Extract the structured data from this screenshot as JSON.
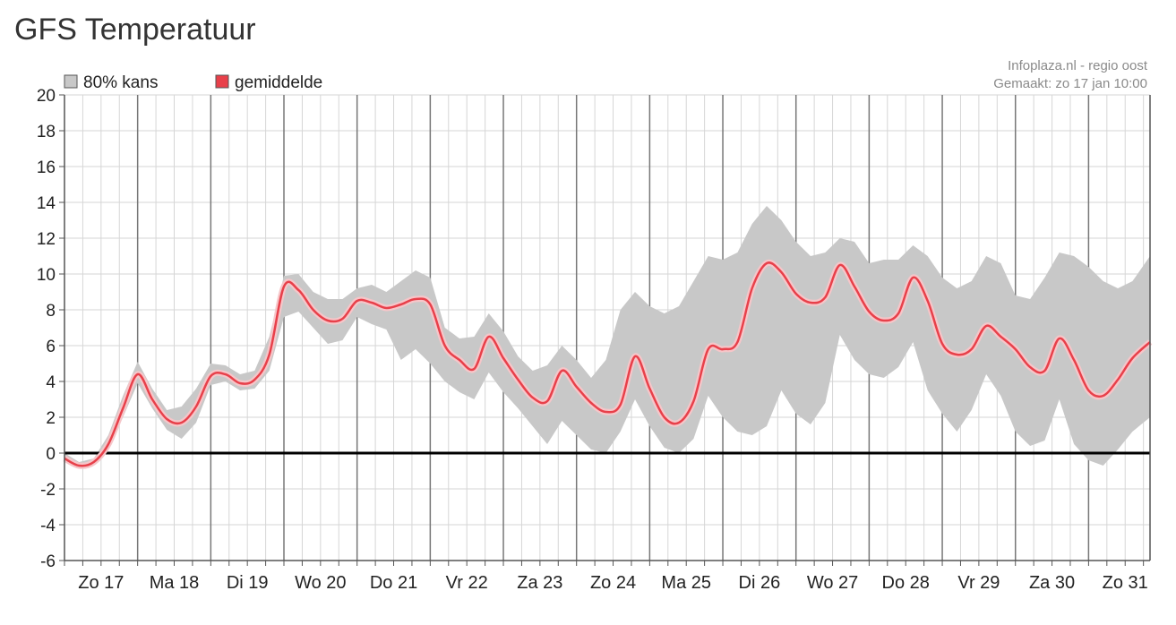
{
  "page": {
    "title": "GFS Temperatuur"
  },
  "chart_data": {
    "type": "line",
    "title": "",
    "xlabel": "",
    "ylabel": "",
    "credit_line1": "Infoplaza.nl - regio oost",
    "credit_line2": "Gemaakt: zo 17 jan 10:00",
    "legend": {
      "placement": "top-left",
      "band_label": "80% kans",
      "mean_label": "gemiddelde"
    },
    "colors": {
      "mean": "#e8404a",
      "band": "#c8c8c8",
      "zero_line": "#000000",
      "day_grid": "#777777",
      "minor_grid": "#d6d6d6"
    },
    "ylim": [
      -6,
      20
    ],
    "yticks": [
      -6,
      -4,
      -2,
      0,
      2,
      4,
      6,
      8,
      10,
      12,
      14,
      16,
      18,
      20
    ],
    "xlim": [
      0,
      14.84
    ],
    "day_labels": [
      "Zo 17",
      "Ma 18",
      "Di 19",
      "Wo 20",
      "Do 21",
      "Vr 22",
      "Za 23",
      "Zo 24",
      "Ma 25",
      "Di 26",
      "Wo 27",
      "Do 28",
      "Vr 29",
      "Za 30",
      "Zo 31"
    ],
    "grid": true,
    "series": [
      {
        "name": "gemiddelde",
        "x": [
          0,
          0.2,
          0.4,
          0.6,
          0.8,
          1,
          1.2,
          1.4,
          1.6,
          1.8,
          2,
          2.2,
          2.4,
          2.6,
          2.8,
          3,
          3.2,
          3.4,
          3.6,
          3.8,
          4,
          4.2,
          4.4,
          4.6,
          4.8,
          5,
          5.2,
          5.4,
          5.6,
          5.8,
          6,
          6.2,
          6.4,
          6.6,
          6.8,
          7,
          7.2,
          7.4,
          7.6,
          7.8,
          8,
          8.2,
          8.4,
          8.6,
          8.8,
          9,
          9.2,
          9.4,
          9.6,
          9.8,
          10,
          10.2,
          10.4,
          10.6,
          10.8,
          11,
          11.2,
          11.4,
          11.6,
          11.8,
          12,
          12.2,
          12.4,
          12.6,
          12.8,
          13,
          13.2,
          13.4,
          13.6,
          13.8,
          14,
          14.2,
          14.4,
          14.6,
          14.84
        ],
        "y": [
          -0.3,
          -0.7,
          -0.5,
          0.5,
          2.5,
          4.4,
          3,
          1.9,
          1.7,
          2.6,
          4.3,
          4.4,
          3.9,
          4.1,
          5.5,
          9.3,
          9.1,
          8,
          7.4,
          7.5,
          8.5,
          8.4,
          8.1,
          8.3,
          8.6,
          8.3,
          6,
          5.2,
          4.7,
          6.5,
          5.3,
          4.1,
          3.1,
          2.9,
          4.6,
          3.7,
          2.8,
          2.3,
          2.7,
          5.4,
          3.6,
          2,
          1.7,
          2.9,
          5.8,
          5.8,
          6.2,
          9.2,
          10.6,
          10.1,
          8.9,
          8.4,
          8.7,
          10.5,
          9.3,
          7.9,
          7.4,
          7.8,
          9.8,
          8.5,
          6.1,
          5.5,
          5.8,
          7.1,
          6.5,
          5.8,
          4.8,
          4.6,
          6.4,
          5.2,
          3.5,
          3.2,
          4.1,
          5.3,
          6.2
        ]
      },
      {
        "name": "80% kans",
        "x": [
          0,
          0.2,
          0.4,
          0.6,
          0.8,
          1,
          1.2,
          1.4,
          1.6,
          1.8,
          2,
          2.2,
          2.4,
          2.6,
          2.8,
          3,
          3.2,
          3.4,
          3.6,
          3.8,
          4,
          4.2,
          4.4,
          4.6,
          4.8,
          5,
          5.2,
          5.4,
          5.6,
          5.8,
          6,
          6.2,
          6.4,
          6.6,
          6.8,
          7,
          7.2,
          7.4,
          7.6,
          7.8,
          8,
          8.2,
          8.4,
          8.6,
          8.8,
          9,
          9.2,
          9.4,
          9.6,
          9.8,
          10,
          10.2,
          10.4,
          10.6,
          10.8,
          11,
          11.2,
          11.4,
          11.6,
          11.8,
          12,
          12.2,
          12.4,
          12.6,
          12.8,
          13,
          13.2,
          13.4,
          13.6,
          13.8,
          14,
          14.2,
          14.4,
          14.6,
          14.84
        ],
        "low": [
          -0.5,
          -0.8,
          -0.6,
          0.2,
          2,
          3.9,
          2.5,
          1.3,
          0.8,
          1.7,
          3.8,
          4,
          3.5,
          3.6,
          4.6,
          7.6,
          7.9,
          7,
          6.1,
          6.3,
          7.6,
          7.2,
          6.9,
          5.2,
          5.8,
          5,
          4,
          3.4,
          3,
          4.5,
          3.4,
          2.5,
          1.5,
          0.5,
          1.8,
          1,
          0.2,
          0,
          1.2,
          3,
          1.5,
          0.3,
          0,
          0.8,
          3.2,
          2,
          1.2,
          1,
          1.5,
          3.5,
          2.2,
          1.6,
          2.8,
          6.6,
          5.2,
          4.4,
          4.2,
          4.8,
          6.2,
          3.5,
          2.2,
          1.2,
          2.4,
          4.4,
          3.2,
          1.2,
          0.4,
          0.7,
          3,
          0.5,
          -0.4,
          -0.7,
          0.2,
          1.2,
          2
        ],
        "high": [
          0,
          -0.5,
          -0.3,
          1,
          3.2,
          5.1,
          3.6,
          2.4,
          2.6,
          3.6,
          5,
          4.9,
          4.4,
          4.6,
          6.5,
          9.9,
          10,
          9,
          8.6,
          8.6,
          9.2,
          9.4,
          9,
          9.6,
          10.2,
          9.8,
          7,
          6.4,
          6.5,
          7.8,
          6.8,
          5.4,
          4.6,
          4.9,
          6,
          5.2,
          4.2,
          5.2,
          8,
          9,
          8.2,
          7.8,
          8.2,
          9.6,
          11,
          10.8,
          11.2,
          12.8,
          13.8,
          13,
          11.8,
          11,
          11.2,
          12,
          11.8,
          10.6,
          10.8,
          10.8,
          11.6,
          11,
          9.8,
          9.2,
          9.6,
          11,
          10.6,
          8.8,
          8.6,
          9.8,
          11.2,
          11,
          10.4,
          9.6,
          9.2,
          9.6,
          11
        ]
      }
    ]
  }
}
